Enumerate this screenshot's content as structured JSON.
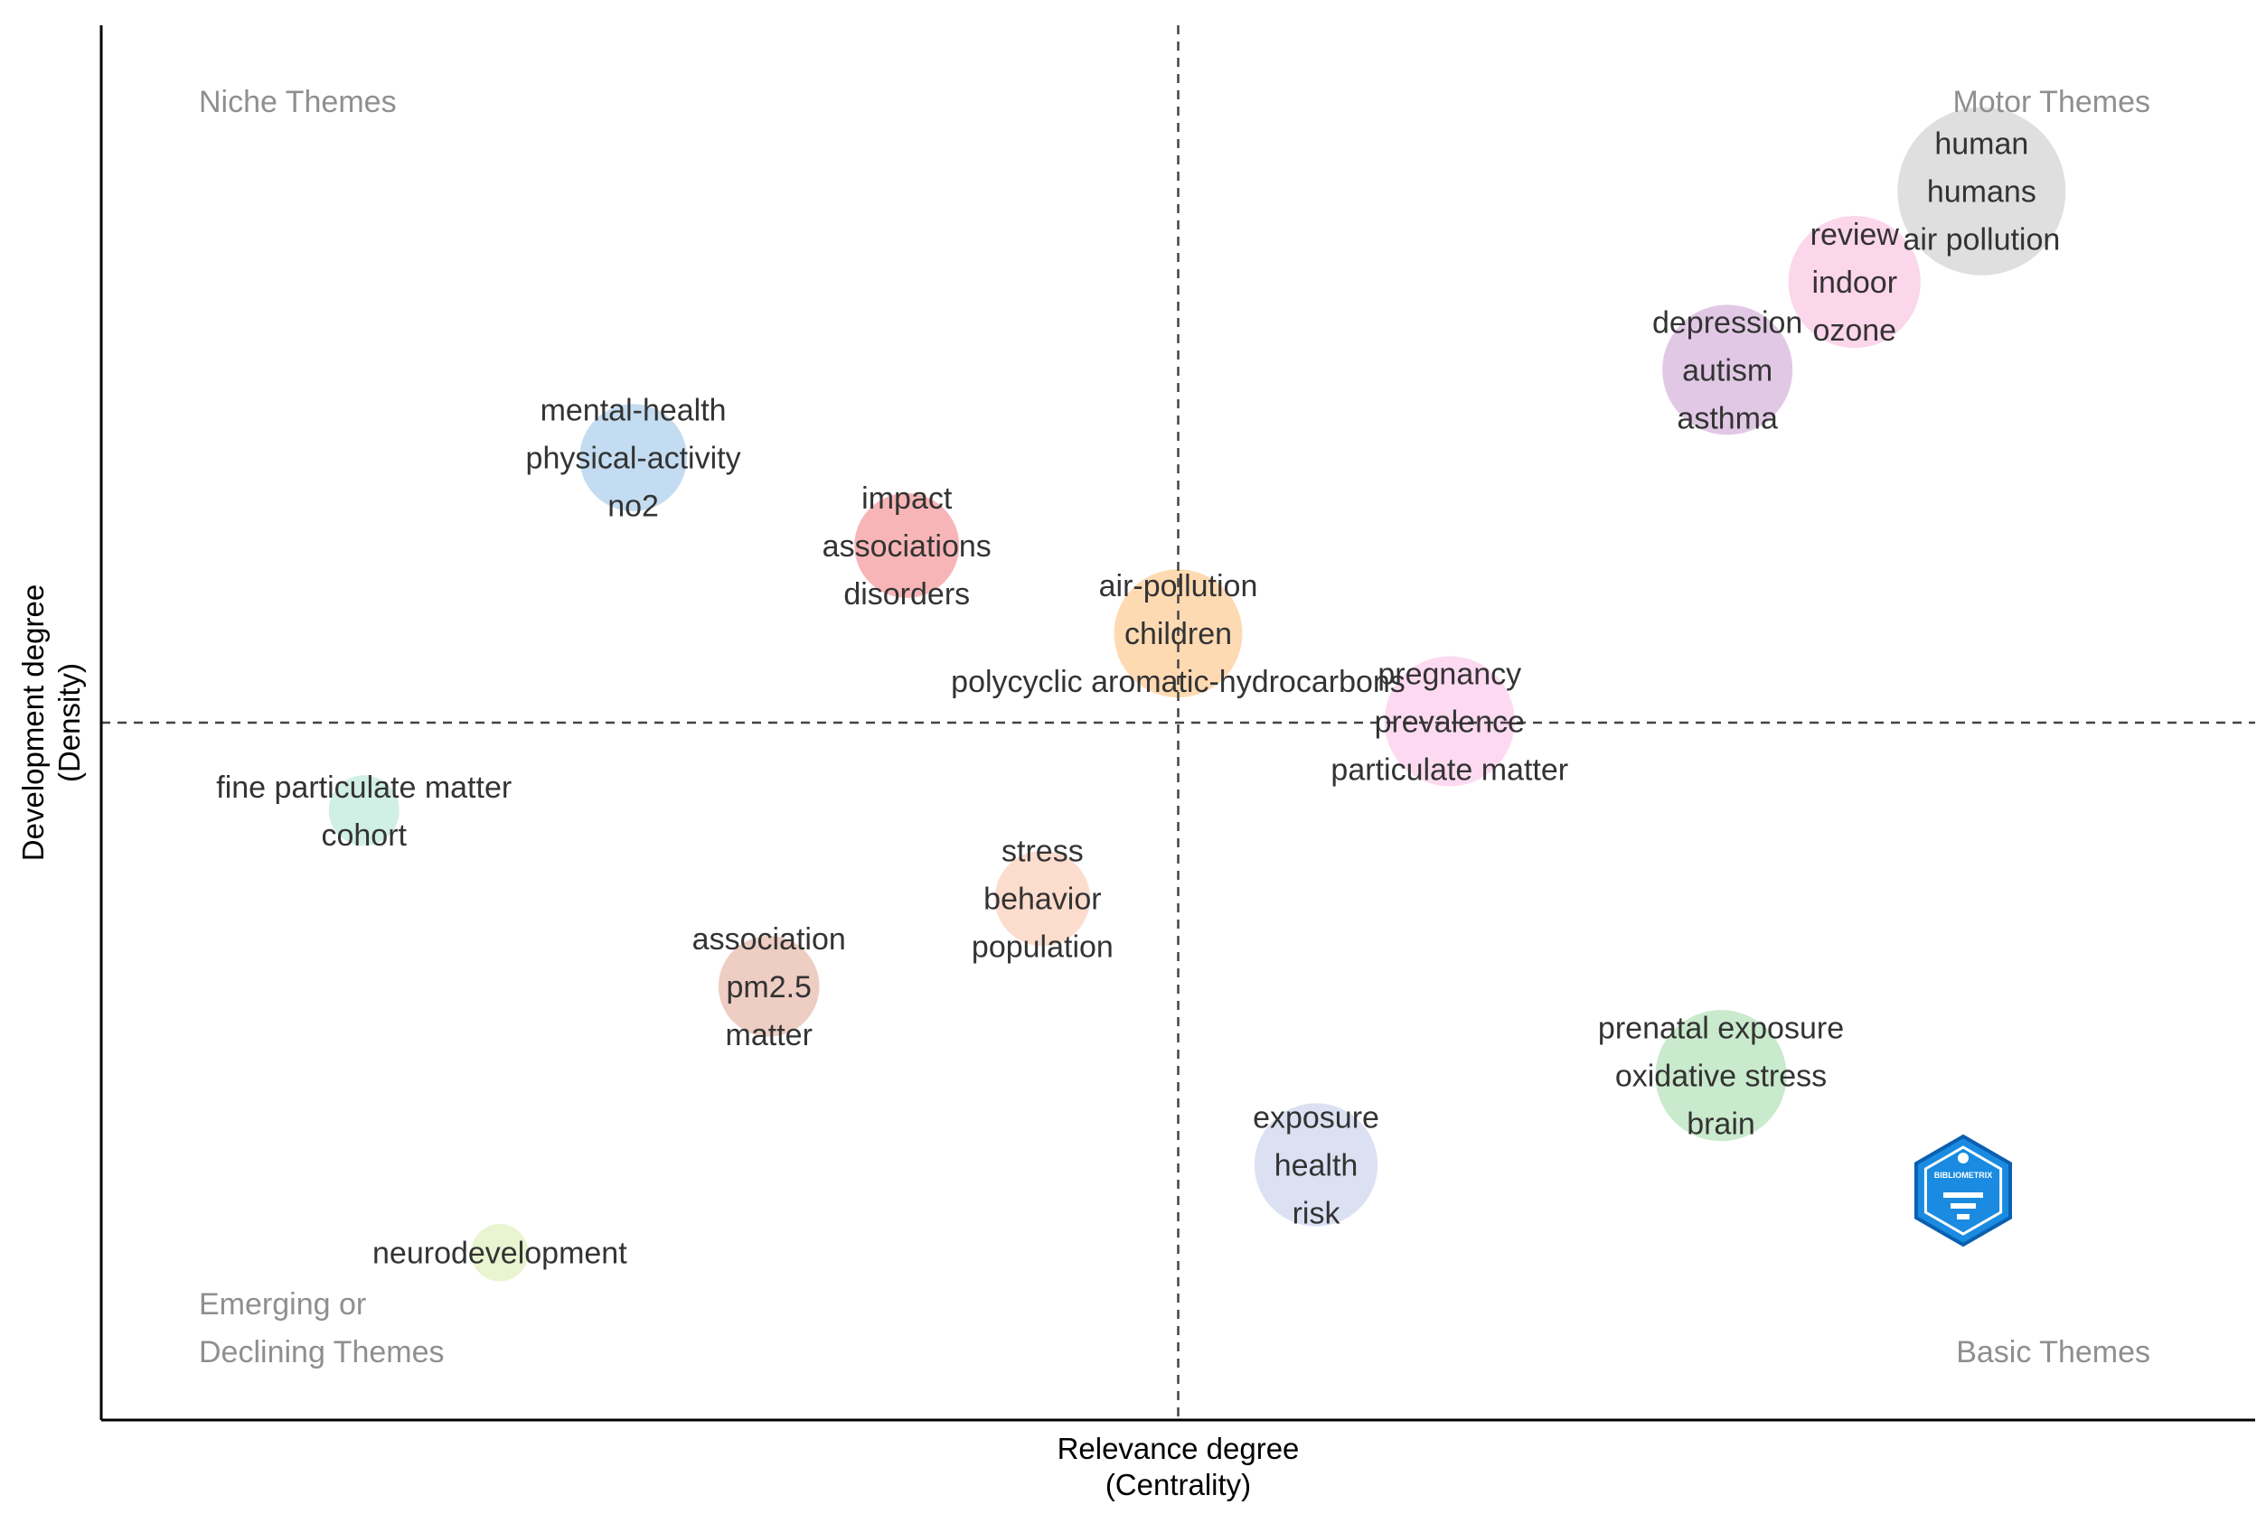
{
  "chart_data": {
    "type": "scatter",
    "xlabel": [
      "Relevance degree",
      "(Centrality)"
    ],
    "ylabel": [
      "Development degree",
      "(Density)"
    ],
    "quadrants": {
      "top_left": [
        "Niche Themes"
      ],
      "top_right": [
        "Motor Themes"
      ],
      "bottom_left": [
        "Emerging or",
        "Declining Themes"
      ],
      "bottom_right": [
        "Basic Themes"
      ]
    },
    "reference_lines": {
      "vertical": "dashed",
      "horizontal": "dashed"
    },
    "logo_text": "BIBLIOMETRIX",
    "clusters": [
      {
        "words": [
          "human",
          "humans",
          "air pollution"
        ],
        "x": 0.873,
        "y": 0.881,
        "size": 1.0,
        "color": "#d9d9d9"
      },
      {
        "words": [
          "review",
          "indoor",
          "ozone"
        ],
        "x": 0.814,
        "y": 0.816,
        "size": 0.56,
        "color": "#fbcfe8"
      },
      {
        "words": [
          "depression",
          "autism",
          "asthma"
        ],
        "x": 0.755,
        "y": 0.753,
        "size": 0.54,
        "color": "#dcc0e0"
      },
      {
        "words": [
          "mental-health",
          "physical-activity",
          "no2"
        ],
        "x": 0.247,
        "y": 0.69,
        "size": 0.33,
        "color": "#b9d6ee"
      },
      {
        "words": [
          "impact",
          "associations",
          "disorders"
        ],
        "x": 0.374,
        "y": 0.627,
        "size": 0.31,
        "color": "#f7a8aa"
      },
      {
        "words": [
          "air-pollution",
          "children",
          "polycyclic aromatic-hydrocarbons"
        ],
        "x": 0.5,
        "y": 0.564,
        "size": 0.52,
        "color": "#fed4a6"
      },
      {
        "words": [
          "pregnancy",
          "prevalence",
          "particulate matter"
        ],
        "x": 0.626,
        "y": 0.501,
        "size": 0.54,
        "color": "#fdd3ee"
      },
      {
        "words": [
          "fine particulate matter",
          "cohort"
        ],
        "x": 0.122,
        "y": 0.437,
        "size": 0.1,
        "color": "#c8ece0"
      },
      {
        "words": [
          "stress",
          "behavior",
          "population"
        ],
        "x": 0.437,
        "y": 0.374,
        "size": 0.24,
        "color": "#fcd6c4"
      },
      {
        "words": [
          "association",
          "pm2.5",
          "matter"
        ],
        "x": 0.31,
        "y": 0.311,
        "size": 0.28,
        "color": "#ebc4b8"
      },
      {
        "words": [
          "prenatal exposure",
          "oxidative stress",
          "brain"
        ],
        "x": 0.752,
        "y": 0.247,
        "size": 0.55,
        "color": "#bfe6c3"
      },
      {
        "words": [
          "exposure",
          "health",
          "risk"
        ],
        "x": 0.564,
        "y": 0.183,
        "size": 0.47,
        "color": "#d5dcf0"
      },
      {
        "words": [
          "neurodevelopment"
        ],
        "x": 0.185,
        "y": 0.12,
        "size": 0.05,
        "color": "#e5f2c8"
      }
    ]
  }
}
